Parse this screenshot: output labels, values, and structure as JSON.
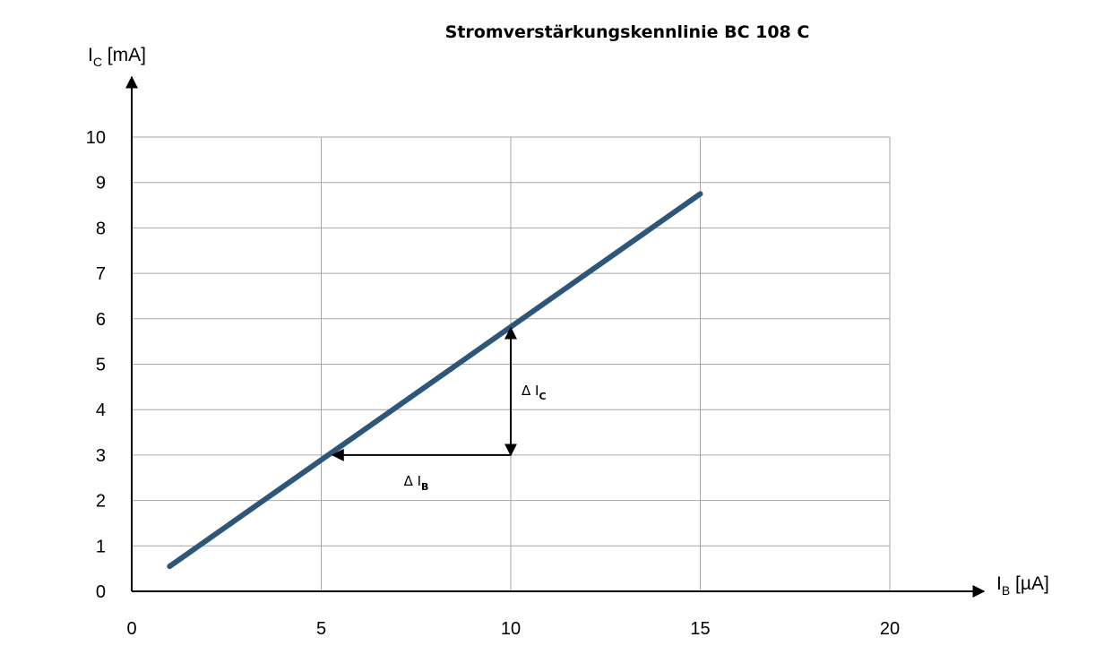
{
  "chart_data": {
    "type": "line",
    "title": "Stromverstärkungskennlinie  BC 108 C",
    "ylabel": {
      "main": "I",
      "sub": "C",
      "unit": " [mA]"
    },
    "xlabel": {
      "main": "I",
      "sub": "B",
      "unit": " [µA]"
    },
    "xlim": [
      0,
      20
    ],
    "ylim": [
      0,
      10
    ],
    "x_ticks": [
      "0",
      "5",
      "10",
      "15",
      "20"
    ],
    "y_ticks": [
      "0",
      "1",
      "2",
      "3",
      "4",
      "5",
      "6",
      "7",
      "8",
      "9",
      "10"
    ],
    "grid": true,
    "colors": {
      "line": "#2e5679",
      "grid": "#a6a6a6",
      "axis": "#000000"
    },
    "series": [
      {
        "x": [
          1,
          15
        ],
        "y": [
          0.55,
          8.75
        ]
      }
    ],
    "annotations": {
      "delta_ic": {
        "symbol": "Δ I",
        "sub": "C",
        "x": 10,
        "y_from": 3,
        "y_to": 5.8
      },
      "delta_ib": {
        "symbol": "Δ I",
        "sub": "B",
        "y": 3,
        "x_from": 5.3,
        "x_to": 10
      }
    }
  }
}
